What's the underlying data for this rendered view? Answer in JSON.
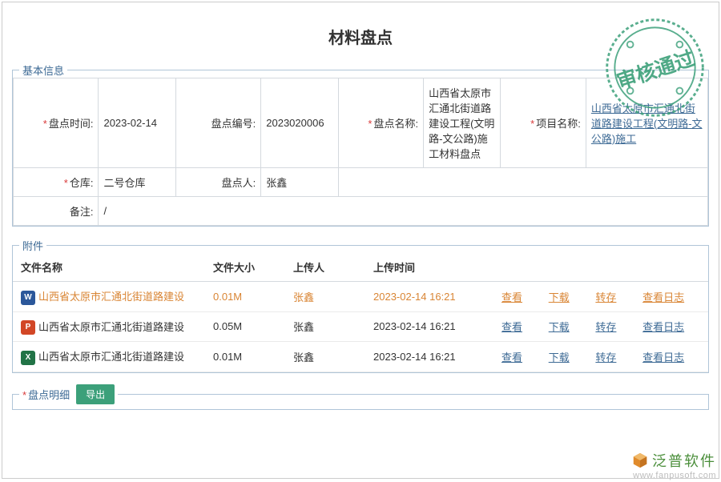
{
  "page_title": "材料盘点",
  "section_basic": "基本信息",
  "section_attach": "附件",
  "section_detail": "盘点明细",
  "stamp_text": "审核通过",
  "stamp_color": "#3ca07a",
  "fields": {
    "time_label": "盘点时间:",
    "time_value": "2023-02-14",
    "code_label": "盘点编号:",
    "code_value": "2023020006",
    "name_label": "盘点名称:",
    "name_value": "山西省太原市汇通北街道路建设工程(文明路-文公路)施工材料盘点",
    "project_label": "项目名称:",
    "project_value": "山西省太原市汇通北街道路建设工程(文明路-文公路)施工",
    "warehouse_label": "仓库:",
    "warehouse_value": "二号仓库",
    "person_label": "盘点人:",
    "person_value": "张鑫",
    "remark_label": "备注:",
    "remark_value": "/"
  },
  "attach": {
    "headers": {
      "name": "文件名称",
      "size": "文件大小",
      "uploader": "上传人",
      "time": "上传时间"
    },
    "actions": {
      "view": "查看",
      "download": "下载",
      "transfer": "转存",
      "log": "查看日志"
    },
    "rows": [
      {
        "ico": "W",
        "ico_class": "fi-word",
        "name": "山西省太原市汇通北街道路建设",
        "size": "0.01M",
        "uploader": "张鑫",
        "time": "2023-02-14 16:21",
        "hl": true
      },
      {
        "ico": "P",
        "ico_class": "fi-ppt",
        "name": "山西省太原市汇通北街道路建设",
        "size": "0.05M",
        "uploader": "张鑫",
        "time": "2023-02-14 16:21",
        "hl": false
      },
      {
        "ico": "X",
        "ico_class": "fi-xls",
        "name": "山西省太原市汇通北街道路建设",
        "size": "0.01M",
        "uploader": "张鑫",
        "time": "2023-02-14 16:21",
        "hl": false
      }
    ]
  },
  "detail": {
    "export_label": "导出"
  },
  "brand": {
    "name": "泛普软件",
    "url": "www.fanpusoft.com"
  }
}
